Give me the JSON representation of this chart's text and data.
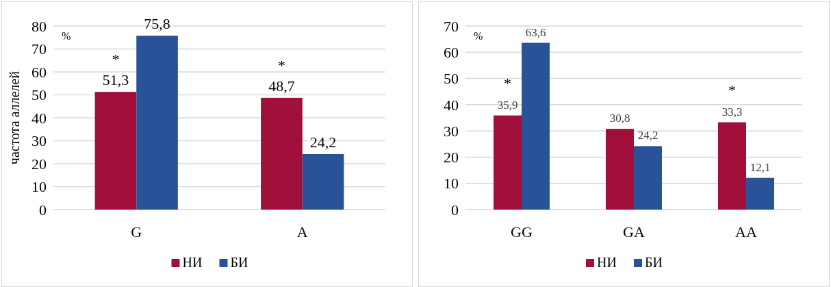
{
  "chart_data": [
    {
      "type": "bar",
      "ylabel": "частота аллелей",
      "categories": [
        "G",
        "A"
      ],
      "series": [
        {
          "name": "НИ",
          "color": "#a0103a",
          "values": [
            51.3,
            48.7
          ],
          "value_labels": [
            "51,3",
            "48,7"
          ]
        },
        {
          "name": "БИ",
          "color": "#2a5298",
          "values": [
            75.8,
            24.2
          ],
          "value_labels": [
            "75,8",
            "24,2"
          ]
        }
      ],
      "ylim": [
        0,
        80
      ],
      "yticks": [
        0,
        10,
        20,
        30,
        40,
        50,
        60,
        70,
        80
      ],
      "grid": "y",
      "legend": "bottom",
      "annotations": [
        "%",
        {
          "text": "*",
          "x": "G",
          "y": 51.3
        },
        {
          "text": "*",
          "x": "A",
          "y": 48.7
        }
      ]
    },
    {
      "type": "bar",
      "categories": [
        "GG",
        "GA",
        "AA"
      ],
      "series": [
        {
          "name": "НИ",
          "color": "#a0103a",
          "values": [
            35.9,
            30.8,
            33.3
          ],
          "value_labels": [
            "35,9",
            "30,8",
            "33,3"
          ]
        },
        {
          "name": "БИ",
          "color": "#2a5298",
          "values": [
            63.6,
            24.2,
            12.1
          ],
          "value_labels": [
            "63,6",
            "24,2",
            "12,1"
          ]
        }
      ],
      "ylim": [
        0,
        70
      ],
      "yticks": [
        0,
        10,
        20,
        30,
        40,
        50,
        60,
        70
      ],
      "grid": "y",
      "legend": "bottom",
      "annotations": [
        "%",
        {
          "text": "*",
          "x": "GG",
          "y": 35.9
        },
        {
          "text": "*",
          "x": "AA",
          "y": 33.3
        }
      ]
    }
  ]
}
